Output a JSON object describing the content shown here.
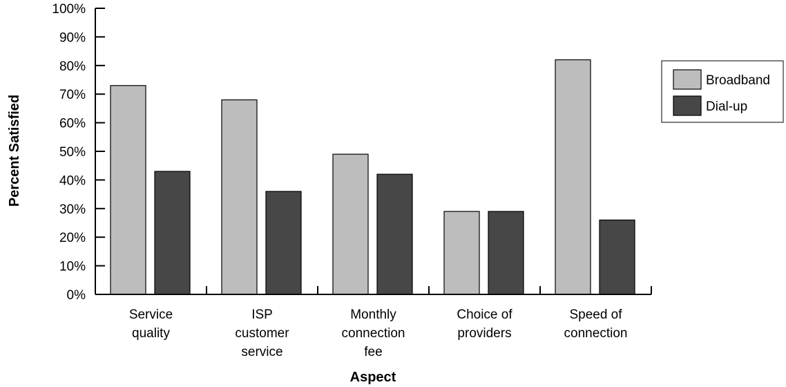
{
  "chart_data": {
    "type": "bar",
    "title": "",
    "xlabel": "Aspect",
    "ylabel": "Percent Satisfied",
    "ylim": [
      0,
      100
    ],
    "yticks": [
      "0%",
      "10%",
      "20%",
      "30%",
      "40%",
      "50%",
      "60%",
      "70%",
      "80%",
      "90%",
      "100%"
    ],
    "categories": [
      [
        "Service",
        "quality"
      ],
      [
        "ISP",
        "customer",
        "service"
      ],
      [
        "Monthly",
        "connection",
        "fee"
      ],
      [
        "Choice of",
        "providers"
      ],
      [
        "Speed of",
        "connection"
      ]
    ],
    "series": [
      {
        "name": "Broadband",
        "color": "#bdbdbd",
        "values": [
          73,
          68,
          49,
          29,
          82
        ]
      },
      {
        "name": "Dial-up",
        "color": "#474747",
        "values": [
          43,
          36,
          42,
          29,
          26
        ]
      }
    ],
    "legend_position": "right",
    "grid": false
  }
}
